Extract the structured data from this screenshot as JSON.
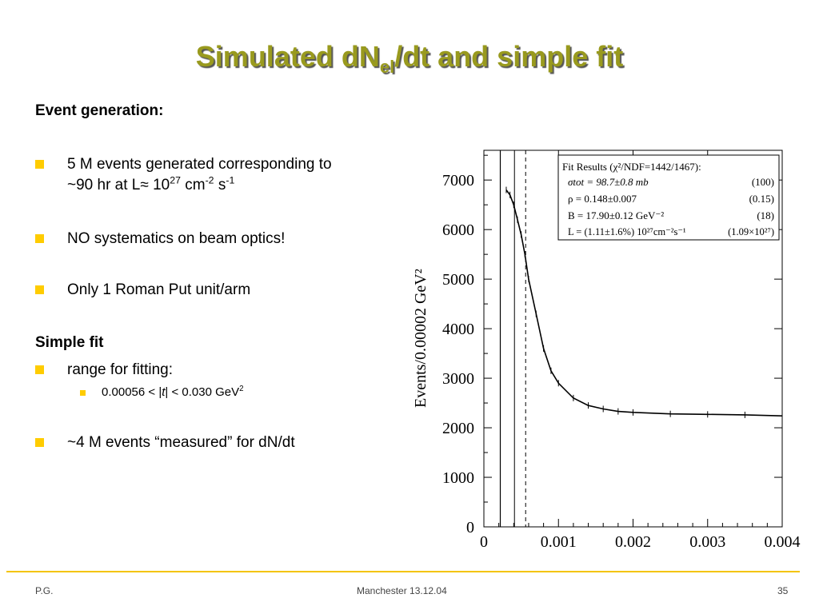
{
  "slide": {
    "title_main": "Simulated dN",
    "title_sub": "el",
    "title_tail": "/dt and simple fit"
  },
  "content": {
    "section1": "Event generation:",
    "b1_line1": "5 M events generated corresponding to",
    "b1_line2_a": "~90 hr at L≈ 10",
    "b1_line2_exp1": "27",
    "b1_line2_b": " cm",
    "b1_line2_exp2": "-2",
    "b1_line2_c": " s",
    "b1_line2_exp3": "-1",
    "b2": "NO systematics on beam optics!",
    "b3": "Only 1 Roman Put unit/arm",
    "section2": "Simple fit",
    "b4": " range for fitting:",
    "sub1_a": "0.00056 < |",
    "sub1_t": "t",
    "sub1_b": "| < 0.030 GeV",
    "sub1_exp": "2",
    "b5": "~4 M events “measured” for dN/dt"
  },
  "footer": {
    "left": "P.G.",
    "center": "Manchester 13.12.04",
    "right": "35"
  },
  "fitbox": {
    "title": "Fit Results (χ²/NDF=1442/1467):",
    "rows": [
      {
        "param": "σtot = 98.7±0.8 mb",
        "truth": "(100)"
      },
      {
        "param": "ρ = 0.148±0.007",
        "truth": "(0.15)"
      },
      {
        "param": "B = 17.90±0.12  GeV⁻²",
        "truth": "(18)"
      },
      {
        "param": "L =  (1.11±1.6%) 10²⁷cm⁻²s⁻¹",
        "truth": "(1.09×10²⁷)"
      }
    ]
  },
  "chart_data": {
    "type": "line",
    "title": "",
    "xlabel": "",
    "ylabel": "Events/0.00002 GeV²",
    "xlim": [
      0,
      0.004
    ],
    "ylim": [
      0,
      7600
    ],
    "x_ticks": [
      "0",
      "0.001",
      "0.002",
      "0.003",
      "0.004"
    ],
    "y_ticks": [
      "0",
      "1000",
      "2000",
      "3000",
      "4000",
      "5000",
      "6000",
      "7000"
    ],
    "fit_range_start": 0.00056,
    "series": [
      {
        "x": [
          0.0003,
          0.00035,
          0.0004,
          0.00045,
          0.0005,
          0.00055,
          0.0006,
          0.0007,
          0.0008,
          0.0009,
          0.001,
          0.0012,
          0.0014,
          0.0016,
          0.0018,
          0.002,
          0.0025,
          0.003,
          0.0035,
          0.004
        ],
        "y": [
          6800,
          6700,
          6500,
          6200,
          5900,
          5500,
          5000,
          4300,
          3600,
          3150,
          2900,
          2600,
          2450,
          2380,
          2330,
          2310,
          2280,
          2270,
          2260,
          2240
        ]
      }
    ],
    "colors": {
      "data": "#000000",
      "fitline": "#000000"
    },
    "grid": false
  }
}
